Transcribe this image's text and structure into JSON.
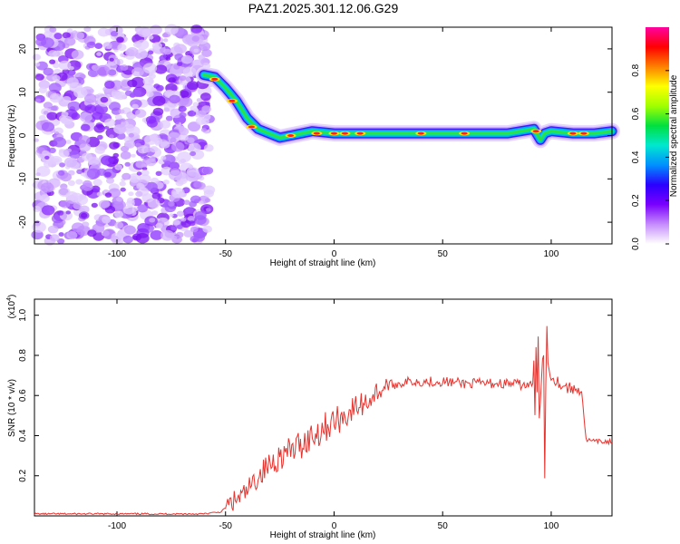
{
  "title": "PAZ1.2025.301.12.06.G29",
  "chart_data": [
    {
      "type": "heatmap",
      "xlabel": "Height of straight line (km)",
      "ylabel": "Frequency (Hz)",
      "xlim": [
        -138,
        128
      ],
      "ylim": [
        -25,
        25
      ],
      "xticks": [
        -100,
        -50,
        0,
        50,
        100
      ],
      "yticks": [
        -20,
        -10,
        0,
        10,
        20
      ],
      "colorbar": {
        "label": "Normalized spectral amplitude",
        "range": [
          0.0,
          1.0
        ],
        "ticks": [
          0.0,
          0.2,
          0.4,
          0.6,
          0.8
        ],
        "colors": [
          "#ffffff",
          "#c58cff",
          "#7a00ff",
          "#2a00ff",
          "#0090ff",
          "#00e8d0",
          "#00e040",
          "#a0ff00",
          "#ffff00",
          "#ff8000",
          "#ff0000",
          "#ff00a0"
        ]
      },
      "noise_region_x": [
        -138,
        -57
      ],
      "ridge": {
        "x": [
          -60,
          -55,
          -50,
          -45,
          -40,
          -35,
          -30,
          -25,
          -20,
          -15,
          -10,
          0,
          20,
          40,
          60,
          80,
          92,
          95,
          97,
          100,
          110,
          120,
          128
        ],
        "y": [
          14,
          13.5,
          11,
          8,
          4,
          1.5,
          0.5,
          -0.5,
          0,
          0.5,
          1,
          0.5,
          0.5,
          0.5,
          0.5,
          0.5,
          1.5,
          -1,
          0.5,
          1,
          0.5,
          0.5,
          1
        ]
      }
    },
    {
      "type": "line",
      "xlabel": "Height of straight line (km)",
      "ylabel": "SNR (10 * v/v)",
      "yunit": "(x10",
      "yunit_exp": "4",
      "xlim": [
        -138,
        128
      ],
      "ylim": [
        0.0,
        1.08
      ],
      "xticks": [
        -100,
        -50,
        0,
        50,
        100
      ],
      "yticks": [
        0.2,
        0.4,
        0.6,
        0.8,
        1.0
      ],
      "color": "#e8322d",
      "series": [
        {
          "x": [
            -138,
            -120,
            -100,
            -80,
            -60,
            -52,
            -48,
            -45,
            -42,
            -40,
            -35,
            -30,
            -25,
            -20,
            -15,
            -10,
            -5,
            0,
            5,
            10,
            15,
            20,
            25,
            30,
            35,
            40,
            50,
            60,
            70,
            80,
            90,
            93,
            95,
            96,
            97,
            98,
            100,
            105,
            110,
            114,
            116,
            120,
            128
          ],
          "y": [
            0.01,
            0.01,
            0.01,
            0.01,
            0.01,
            0.02,
            0.06,
            0.08,
            0.1,
            0.12,
            0.2,
            0.25,
            0.3,
            0.32,
            0.36,
            0.4,
            0.44,
            0.47,
            0.5,
            0.54,
            0.57,
            0.62,
            0.65,
            0.66,
            0.67,
            0.67,
            0.67,
            0.66,
            0.66,
            0.66,
            0.65,
            0.65,
            0.7,
            0.95,
            0.4,
            0.85,
            0.7,
            0.65,
            0.63,
            0.63,
            0.38,
            0.37,
            0.37
          ]
        }
      ]
    }
  ]
}
